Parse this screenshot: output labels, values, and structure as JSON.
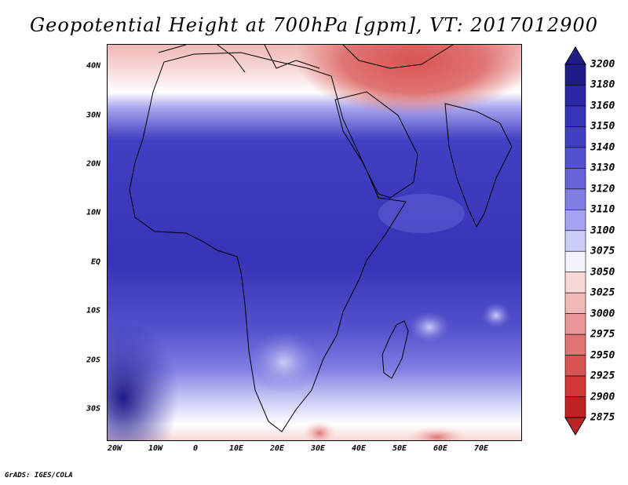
{
  "title": "Geopotential Height at 700hPa [gpm], VT: 2017012900",
  "credit": "GrADS: IGES/COLA",
  "map": {
    "lat_labels": [
      "40N",
      "30N",
      "20N",
      "10N",
      "EQ",
      "10S",
      "20S",
      "30S"
    ],
    "lon_labels": [
      "20W",
      "10W",
      "0",
      "10E",
      "20E",
      "30E",
      "40E",
      "50E",
      "60E",
      "70E"
    ]
  },
  "colorbar": {
    "levels": [
      "3200",
      "3180",
      "3160",
      "3150",
      "3140",
      "3130",
      "3120",
      "3110",
      "3100",
      "3075",
      "3050",
      "3025",
      "3000",
      "2975",
      "2950",
      "2925",
      "2900",
      "2875"
    ],
    "colors": [
      "#1f1b87",
      "#2c27a4",
      "#3733b6",
      "#4240c2",
      "#5452cc",
      "#6663d6",
      "#807ee2",
      "#a6a4ee",
      "#cccdf6",
      "#f3f3fb",
      "#f6d8d6",
      "#f0b8b6",
      "#e89896",
      "#e07573",
      "#d85452",
      "#cf3837",
      "#bd2322"
    ]
  }
}
